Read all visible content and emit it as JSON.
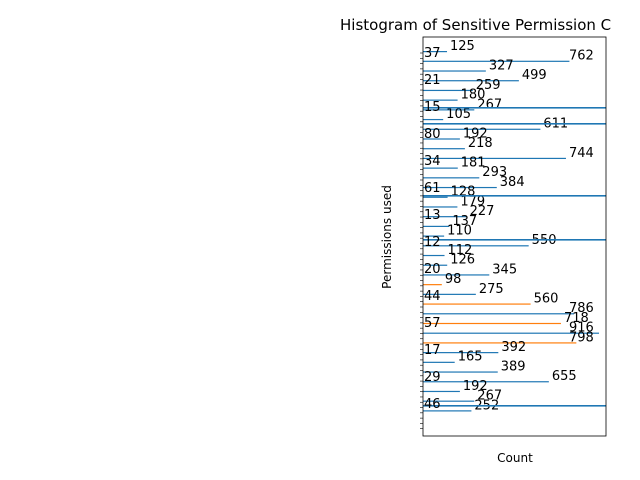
{
  "chart_data": {
    "type": "bar",
    "orientation": "horizontal",
    "title": "Histogram of Sensitive Permission C",
    "xlabel": "Count",
    "ylabel": "Permissions used",
    "xlim": [
      0,
      1000
    ],
    "grid": false,
    "legend": "none",
    "colors": {
      "bar_primary": "#1f77b4",
      "bar_secondary": "#ff7f0e",
      "axis": "#000000"
    },
    "series": [
      {
        "values": [
          125,
          762,
          327,
          499,
          259,
          180,
          267,
          105,
          611,
          192,
          218,
          744,
          181,
          293,
          384,
          128,
          179,
          227,
          137,
          110,
          550,
          112,
          126,
          345,
          98,
          275,
          560,
          786,
          718,
          916,
          798,
          392,
          165,
          389,
          655,
          192,
          267,
          252
        ]
      }
    ],
    "extra_labels": [
      "37",
      "21",
      "15",
      "80",
      "34",
      "61",
      "13",
      "12",
      "20",
      "44",
      "57",
      "17",
      "29",
      "46"
    ]
  }
}
